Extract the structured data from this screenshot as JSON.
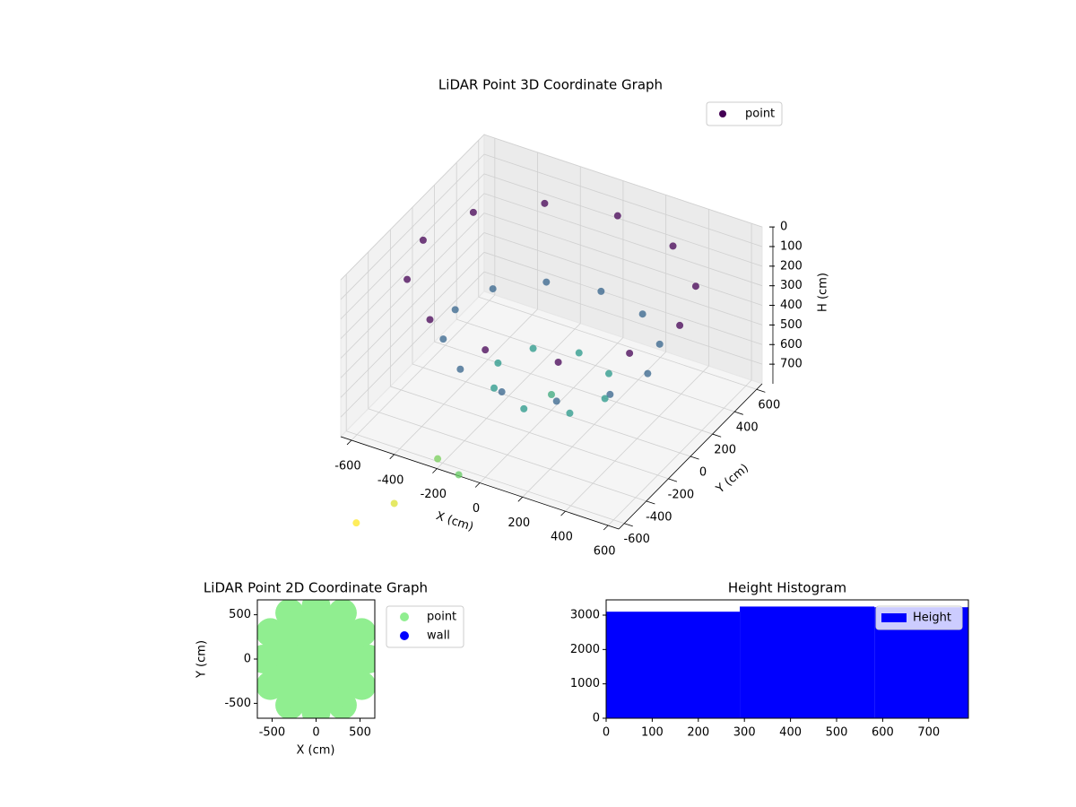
{
  "chart_data": [
    {
      "type": "scatter3d",
      "title": "LiDAR Point 3D Coordinate Graph",
      "x_label": "X (cm)",
      "y_label": "Y (cm)",
      "z_label": "H (cm)",
      "series": [
        {
          "name": "point",
          "color": "#440154",
          "x": [
            600,
            520,
            300,
            0,
            -300,
            -520,
            -600,
            -520,
            -300,
            0,
            300,
            520,
            450,
            390,
            225,
            0,
            -225,
            -390,
            -450,
            -390,
            -225,
            0,
            225,
            390,
            250,
            177,
            0,
            -177,
            -250,
            -177,
            0,
            177,
            0,
            -300,
            -150,
            -400,
            -500
          ],
          "y": [
            0,
            300,
            520,
            600,
            520,
            300,
            0,
            -300,
            -520,
            -600,
            -520,
            -300,
            0,
            225,
            390,
            450,
            390,
            225,
            0,
            -225,
            -390,
            -450,
            -390,
            -225,
            0,
            177,
            250,
            177,
            0,
            -177,
            -250,
            -177,
            0,
            -450,
            -550,
            -650,
            -800
          ],
          "values": [
            150,
            150,
            150,
            150,
            150,
            150,
            150,
            150,
            150,
            150,
            150,
            150,
            450,
            450,
            450,
            450,
            450,
            450,
            450,
            450,
            450,
            450,
            450,
            450,
            650,
            650,
            650,
            650,
            650,
            650,
            650,
            650,
            720,
            900,
            870,
            1050,
            1100
          ]
        }
      ],
      "colormap": "viridis",
      "xlim": [
        -650,
        650
      ],
      "ylim": [
        -650,
        650
      ],
      "zlim": [
        0,
        800
      ],
      "z_inverted": true,
      "xticks": [
        -600,
        -400,
        -200,
        0,
        200,
        400,
        600
      ],
      "yticks": [
        -600,
        -400,
        -200,
        0,
        200,
        400,
        600
      ],
      "zticks": [
        0,
        100,
        200,
        300,
        400,
        500,
        600,
        700
      ],
      "grid": true,
      "legend": "upper right"
    },
    {
      "type": "scatter",
      "title": "LiDAR Point 2D Coordinate Graph",
      "x_label": "X (cm)",
      "y_label": "Y (cm)",
      "series": [
        {
          "name": "point",
          "color": "#90ee90",
          "x": [
            600,
            520,
            300,
            0,
            -300,
            -520,
            -600,
            -520,
            -300,
            0,
            300,
            520,
            450,
            390,
            225,
            0,
            -225,
            -390,
            -450,
            -390,
            -225,
            0,
            225,
            390,
            250,
            177,
            0,
            -177,
            -250,
            -177,
            0,
            177,
            0
          ],
          "y": [
            0,
            300,
            520,
            600,
            520,
            300,
            0,
            -300,
            -520,
            -600,
            -520,
            -300,
            0,
            225,
            390,
            450,
            390,
            225,
            0,
            -225,
            -390,
            -450,
            -390,
            -225,
            0,
            177,
            250,
            177,
            0,
            -177,
            -250,
            -177,
            0
          ]
        },
        {
          "name": "wall",
          "color": "#0000ff",
          "x": [],
          "y": []
        }
      ],
      "xlim": [
        -668,
        668
      ],
      "ylim": [
        -668,
        668
      ],
      "xticks": [
        -500,
        0,
        500
      ],
      "yticks": [
        -500,
        0,
        500
      ],
      "legend": "outside right"
    },
    {
      "type": "histogram",
      "title": "Height Histogram",
      "series": [
        {
          "name": "Height",
          "color": "#0000ff",
          "values": [
            3100,
            3250,
            3230
          ]
        }
      ],
      "bins": [
        0,
        290,
        582,
        786
      ],
      "xlim": [
        0,
        786
      ],
      "ylim": [
        0,
        3444
      ],
      "xticks": [
        0,
        100,
        200,
        300,
        400,
        500,
        600,
        700
      ],
      "yticks": [
        0,
        1000,
        2000,
        3000
      ],
      "legend": "upper right"
    }
  ]
}
